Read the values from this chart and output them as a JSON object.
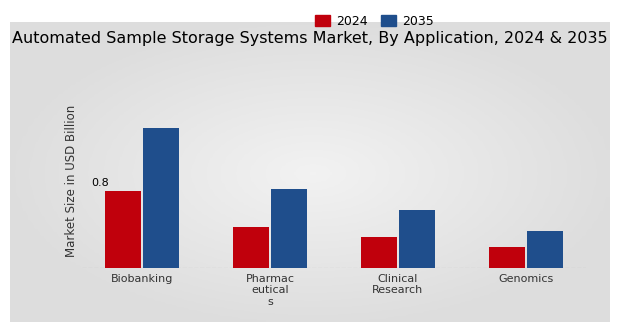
{
  "title": "Automated Sample Storage Systems Market, By Application, 2024 & 2035",
  "ylabel": "Market Size in USD Billion",
  "categories": [
    "Biobanking",
    "Pharmac\neutical\ns",
    "Clinical\nResearch",
    "Genomics"
  ],
  "values_2024": [
    0.8,
    0.42,
    0.32,
    0.22
  ],
  "values_2035": [
    1.45,
    0.82,
    0.6,
    0.38
  ],
  "color_2024": "#c0000c",
  "color_2035": "#1f4e8c",
  "background_color": "#e8e8e8",
  "gradient_center_color": "#f2f2f2",
  "annotation_text": "0.8",
  "bar_width": 0.28,
  "legend_labels": [
    "2024",
    "2035"
  ],
  "ylim": [
    0,
    1.8
  ],
  "title_fontsize": 11.5,
  "axis_label_fontsize": 8.5,
  "tick_fontsize": 8,
  "legend_fontsize": 9,
  "bottom_bar_color": "#c0000c",
  "bottom_bar_height": 8
}
